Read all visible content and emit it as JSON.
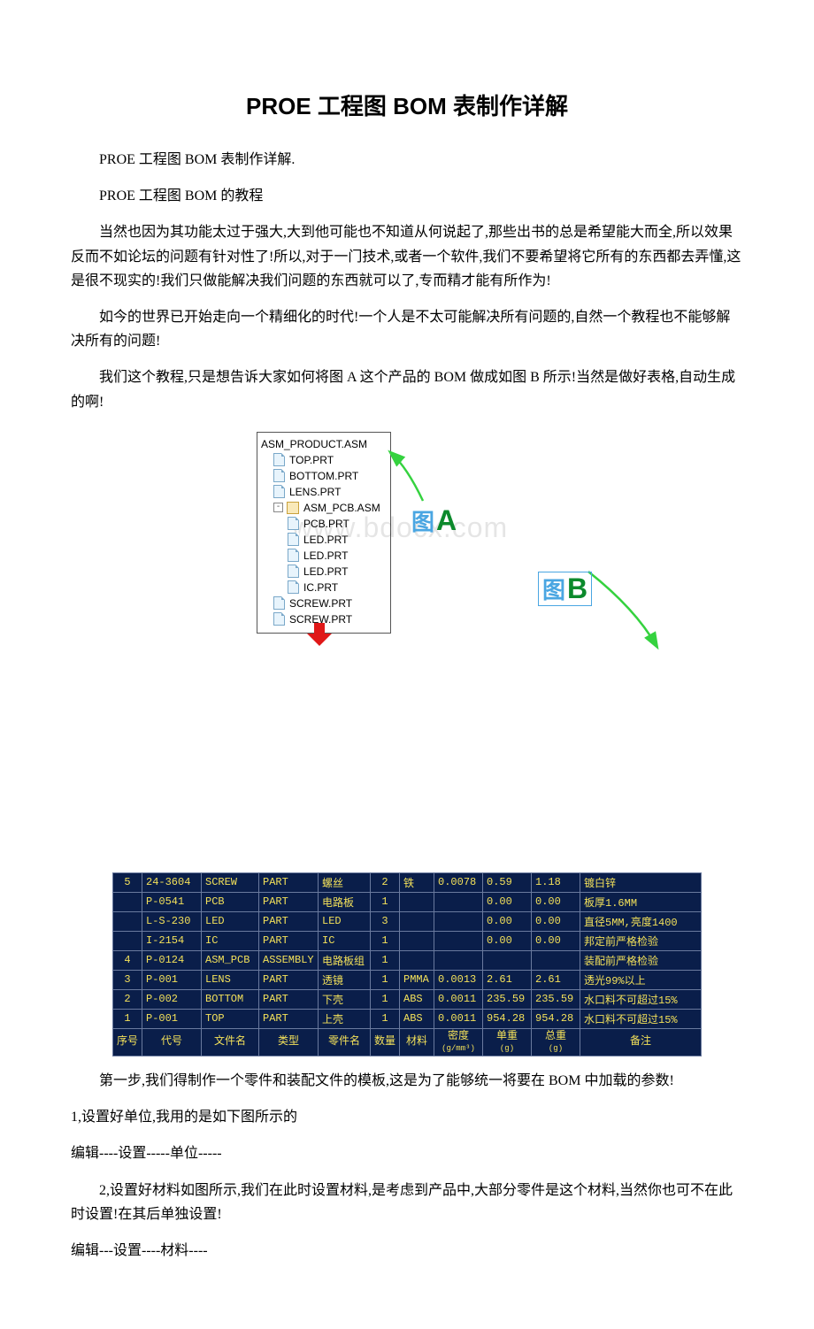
{
  "title": "PROE 工程图 BOM 表制作详解",
  "para1": "PROE 工程图 BOM 表制作详解.",
  "para2": "PROE 工程图 BOM 的教程",
  "para3": "当然也因为其功能太过于强大,大到他可能也不知道从何说起了,那些出书的总是希望能大而全,所以效果反而不如论坛的问题有针对性了!所以,对于一门技术,或者一个软件,我们不要希望将它所有的东西都去弄懂,这是很不现实的!我们只做能解决我们问题的东西就可以了,专而精才能有所作为!",
  "para4": "如今的世界已开始走向一个精细化的时代!一个人是不太可能解决所有问题的,自然一个教程也不能够解决所有的问题!",
  "para5": "我们这个教程,只是想告诉大家如何将图 A 这个产品的 BOM 做成如图 B 所示!当然是做好表格,自动生成的啊!",
  "para6": "第一步,我们得制作一个零件和装配文件的模板,这是为了能够统一将要在 BOM 中加载的参数!",
  "para7": "1,设置好单位,我用的是如下图所示的",
  "para8": "编辑----设置-----单位-----",
  "para9": "2,设置好材料如图所示,我们在此时设置材料,是考虑到产品中,大部分零件是这个材料,当然你也可不在此时设置!在其后单独设置!",
  "para10": "编辑---设置----材料----",
  "tree": {
    "root": "ASM_PRODUCT.ASM",
    "items": [
      "TOP.PRT",
      "BOTTOM.PRT",
      "LENS.PRT"
    ],
    "sub_label": "ASM_PCB.ASM",
    "sub_items": [
      "PCB.PRT",
      "LED.PRT",
      "LED.PRT",
      "LED.PRT",
      "IC.PRT"
    ],
    "tail": [
      "SCREW.PRT",
      "SCREW.PRT"
    ]
  },
  "watermark": "www.bdocx.com",
  "labelA": {
    "tu": "图",
    "l": "A"
  },
  "labelB": {
    "tu": "图",
    "l": "B"
  },
  "bom": {
    "headers": {
      "seq": "序号",
      "code": "代号",
      "file": "文件名",
      "type": "类型",
      "pname": "零件名",
      "qty": "数量",
      "mat": "材料",
      "den": "密度",
      "den_unit": "(g/mm³)",
      "uw": "单重",
      "uw_unit": "(g)",
      "tw": "总重",
      "tw_unit": "(g)",
      "note": "备注"
    },
    "rows": [
      {
        "seq": "5",
        "code": "24-3604",
        "file": "SCREW",
        "type": "PART",
        "pname": "螺丝",
        "qty": "2",
        "mat": "铁",
        "den": "0.0078",
        "uw": "0.59",
        "tw": "1.18",
        "note": "镀白锌"
      },
      {
        "seq": "",
        "code": "P-0541",
        "file": "PCB",
        "type": "PART",
        "pname": "电路板",
        "qty": "1",
        "mat": "",
        "den": "",
        "uw": "0.00",
        "tw": "0.00",
        "note": "板厚1.6MM"
      },
      {
        "seq": "",
        "code": "L-S-230",
        "file": "LED",
        "type": "PART",
        "pname": "LED",
        "qty": "3",
        "mat": "",
        "den": "",
        "uw": "0.00",
        "tw": "0.00",
        "note": "直径5MM,亮度1400"
      },
      {
        "seq": "",
        "code": "I-2154",
        "file": "IC",
        "type": "PART",
        "pname": "IC",
        "qty": "1",
        "mat": "",
        "den": "",
        "uw": "0.00",
        "tw": "0.00",
        "note": "邦定前严格检验"
      },
      {
        "seq": "4",
        "code": "P-0124",
        "file": "ASM_PCB",
        "type": "ASSEMBLY",
        "pname": "电路板组",
        "qty": "1",
        "mat": "",
        "den": "",
        "uw": "",
        "tw": "",
        "note": "装配前严格检验"
      },
      {
        "seq": "3",
        "code": "P-001",
        "file": "LENS",
        "type": "PART",
        "pname": "透镜",
        "qty": "1",
        "mat": "PMMA",
        "den": "0.0013",
        "uw": "2.61",
        "tw": "2.61",
        "note": "透光99%以上"
      },
      {
        "seq": "2",
        "code": "P-002",
        "file": "BOTTOM",
        "type": "PART",
        "pname": "下壳",
        "qty": "1",
        "mat": "ABS",
        "den": "0.0011",
        "uw": "235.59",
        "tw": "235.59",
        "note": "水口料不可超过15%"
      },
      {
        "seq": "1",
        "code": "P-001",
        "file": "TOP",
        "type": "PART",
        "pname": "上壳",
        "qty": "1",
        "mat": "ABS",
        "den": "0.0011",
        "uw": "954.28",
        "tw": "954.28",
        "note": "水口料不可超过15%"
      }
    ]
  }
}
